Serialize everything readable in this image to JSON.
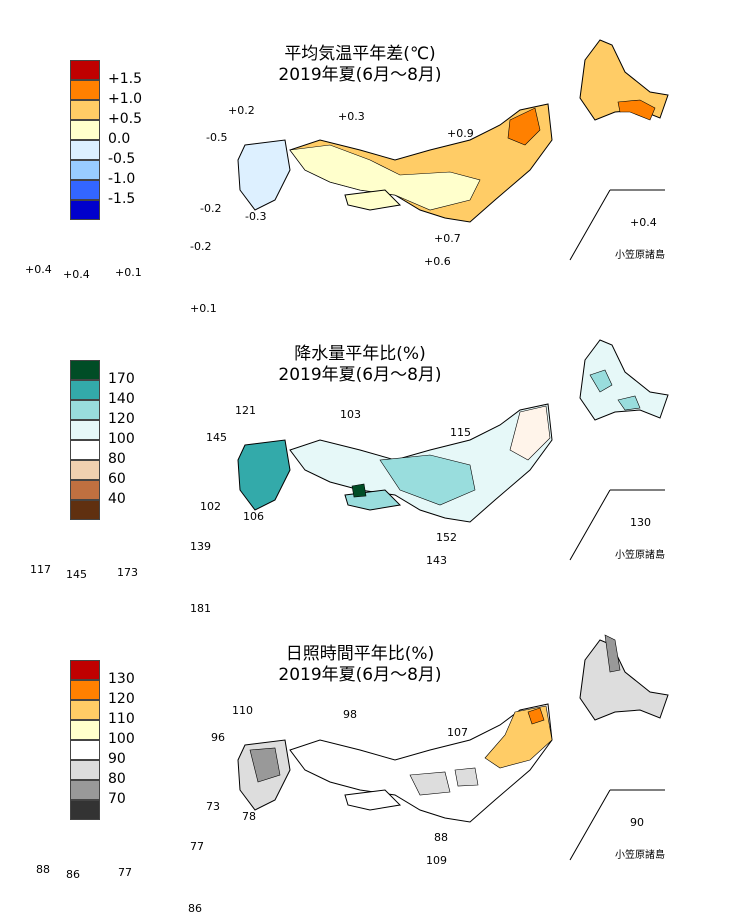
{
  "panels": [
    {
      "title": "平均気温平年差(℃)",
      "period": "2019年夏(6月～8月)",
      "legend_labels": [
        "+1.5",
        "+1.0",
        "+0.5",
        "0.0",
        "-0.5",
        "-1.0",
        "-1.5"
      ],
      "colors": [
        "#c00000",
        "#ff8000",
        "#ffcc66",
        "#ffffcc",
        "#ddf0ff",
        "#99ccff",
        "#3366ff",
        "#0000cc"
      ],
      "values": {
        "v1": "+0.2",
        "v2": "+0.3",
        "v3": "-0.5",
        "v4": "+0.9",
        "v5": "-0.2",
        "v6": "-0.3",
        "v7": "+0.7",
        "v8": "+0.6",
        "v9": "+0.4",
        "v10": "+0.4",
        "v11": "+0.4",
        "v12": "+0.1",
        "v13": "-0.2",
        "v14": "+0.1"
      },
      "ogasawara": "小笠原諸島"
    },
    {
      "title": "降水量平年比(%)",
      "period": "2019年夏(6月～8月)",
      "legend_labels": [
        "170",
        "140",
        "120",
        "100",
        "80",
        "60",
        "40"
      ],
      "colors": [
        "#004d26",
        "#33aaaa",
        "#99dddd",
        "#e6f8f8",
        "#ffffff",
        "#f0d0b0",
        "#c07040",
        "#603010"
      ],
      "values": {
        "v1": "121",
        "v2": "103",
        "v3": "145",
        "v4": "115",
        "v5": "102",
        "v6": "106",
        "v7": "152",
        "v8": "143",
        "v9": "130",
        "v10": "117",
        "v11": "145",
        "v12": "173",
        "v13": "139",
        "v14": "181"
      },
      "ogasawara": "小笠原諸島"
    },
    {
      "title": "日照時間平年比(%)",
      "period": "2019年夏(6月～8月)",
      "legend_labels": [
        "130",
        "120",
        "110",
        "100",
        "90",
        "80",
        "70"
      ],
      "colors": [
        "#c00000",
        "#ff8000",
        "#ffcc66",
        "#ffffcc",
        "#ffffff",
        "#dddddd",
        "#999999",
        "#333333"
      ],
      "values": {
        "v1": "110",
        "v2": "98",
        "v3": "96",
        "v4": "107",
        "v5": "73",
        "v6": "78",
        "v7": "88",
        "v8": "109",
        "v9": "90",
        "v10": "88",
        "v11": "86",
        "v12": "77",
        "v13": "77",
        "v14": "86"
      },
      "ogasawara": "小笠原諸島"
    }
  ]
}
